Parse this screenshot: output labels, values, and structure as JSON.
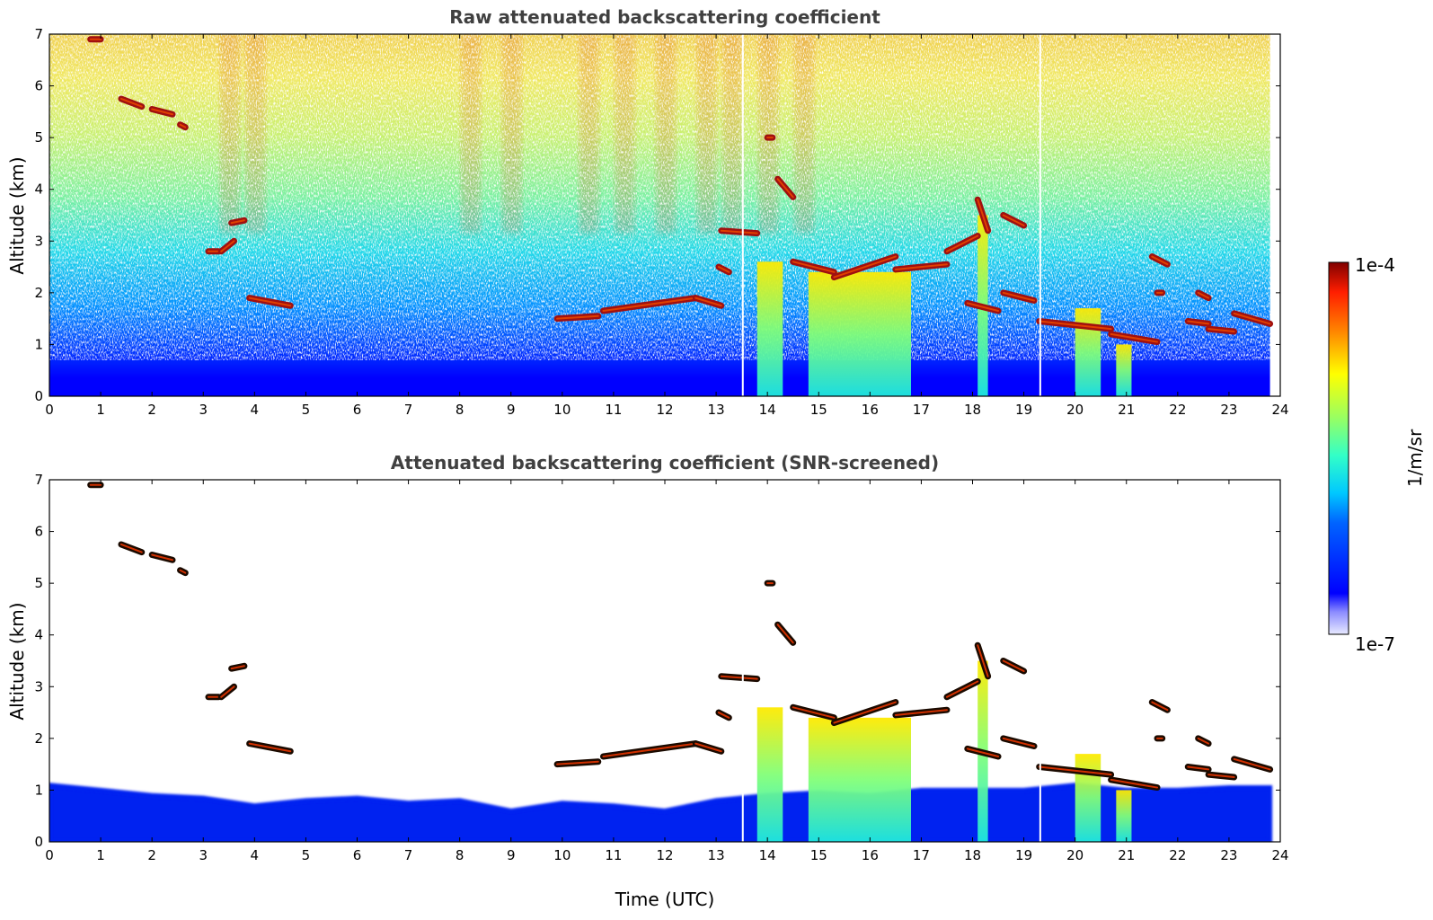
{
  "panels": [
    {
      "title": "Raw attenuated backscattering coefficient",
      "ylabel": "Altitude (km)",
      "xlabel": ""
    },
    {
      "title": "Attenuated backscattering coefficient (SNR-screened)",
      "ylabel": "Altitude (km)",
      "xlabel": "Time (UTC)"
    }
  ],
  "colorbar": {
    "label": "1/m/sr",
    "top_label": "1e-4",
    "bottom_label": "1e-7",
    "colormap": "jet",
    "scale": "log",
    "range": [
      1e-07,
      0.0001
    ]
  },
  "chart_data": [
    {
      "type": "heatmap",
      "title": "Raw attenuated backscattering coefficient",
      "xlabel": "",
      "ylabel": "Altitude (km)",
      "xlim": [
        0,
        24
      ],
      "ylim": [
        0,
        7
      ],
      "x_ticks": [
        "0",
        "1",
        "2",
        "3",
        "4",
        "5",
        "6",
        "7",
        "8",
        "9",
        "10",
        "11",
        "12",
        "13",
        "14",
        "15",
        "16",
        "17",
        "18",
        "19",
        "20",
        "21",
        "22",
        "23",
        "24"
      ],
      "y_ticks": [
        "0",
        "1",
        "2",
        "3",
        "4",
        "5",
        "6",
        "7"
      ],
      "data_end_time": 23.8,
      "cloud_layers": [
        {
          "t": [
            0.8,
            1.0
          ],
          "alt": [
            6.9,
            6.9
          ]
        },
        {
          "t": [
            1.4,
            1.8
          ],
          "alt": [
            5.75,
            5.6
          ]
        },
        {
          "t": [
            2.0,
            2.4
          ],
          "alt": [
            5.55,
            5.45
          ]
        },
        {
          "t": [
            2.55,
            2.65
          ],
          "alt": [
            5.25,
            5.2
          ]
        },
        {
          "t": [
            3.1,
            3.3
          ],
          "alt": [
            2.8,
            2.8
          ]
        },
        {
          "t": [
            3.35,
            3.6
          ],
          "alt": [
            2.8,
            3.0
          ]
        },
        {
          "t": [
            3.55,
            3.8
          ],
          "alt": [
            3.35,
            3.4
          ]
        },
        {
          "t": [
            3.9,
            4.7
          ],
          "alt": [
            1.9,
            1.75
          ]
        },
        {
          "t": [
            9.9,
            10.7
          ],
          "alt": [
            1.5,
            1.55
          ]
        },
        {
          "t": [
            10.8,
            12.6
          ],
          "alt": [
            1.65,
            1.9
          ]
        },
        {
          "t": [
            12.6,
            13.1
          ],
          "alt": [
            1.9,
            1.75
          ]
        },
        {
          "t": [
            13.05,
            13.25
          ],
          "alt": [
            2.5,
            2.4
          ]
        },
        {
          "t": [
            13.1,
            13.8
          ],
          "alt": [
            3.2,
            3.15
          ]
        },
        {
          "t": [
            14.0,
            14.1
          ],
          "alt": [
            5.0,
            5.0
          ]
        },
        {
          "t": [
            14.2,
            14.5
          ],
          "alt": [
            4.2,
            3.85
          ]
        },
        {
          "t": [
            14.5,
            15.3
          ],
          "alt": [
            2.6,
            2.4
          ]
        },
        {
          "t": [
            15.3,
            16.5
          ],
          "alt": [
            2.3,
            2.7
          ]
        },
        {
          "t": [
            16.5,
            17.5
          ],
          "alt": [
            2.45,
            2.55
          ]
        },
        {
          "t": [
            17.5,
            18.1
          ],
          "alt": [
            2.8,
            3.1
          ]
        },
        {
          "t": [
            18.1,
            18.3
          ],
          "alt": [
            3.8,
            3.2
          ]
        },
        {
          "t": [
            17.9,
            18.5
          ],
          "alt": [
            1.8,
            1.65
          ]
        },
        {
          "t": [
            18.6,
            19.2
          ],
          "alt": [
            2.0,
            1.85
          ]
        },
        {
          "t": [
            18.6,
            19.0
          ],
          "alt": [
            3.5,
            3.3
          ]
        },
        {
          "t": [
            19.3,
            20.7
          ],
          "alt": [
            1.45,
            1.3
          ]
        },
        {
          "t": [
            20.7,
            21.6
          ],
          "alt": [
            1.2,
            1.05
          ]
        },
        {
          "t": [
            21.5,
            21.8
          ],
          "alt": [
            2.7,
            2.55
          ]
        },
        {
          "t": [
            21.6,
            21.7
          ],
          "alt": [
            2.0,
            2.0
          ]
        },
        {
          "t": [
            22.2,
            22.6
          ],
          "alt": [
            1.45,
            1.4
          ]
        },
        {
          "t": [
            22.4,
            22.6
          ],
          "alt": [
            2.0,
            1.9
          ]
        },
        {
          "t": [
            22.6,
            23.1
          ],
          "alt": [
            1.3,
            1.25
          ]
        },
        {
          "t": [
            23.1,
            23.8
          ],
          "alt": [
            1.6,
            1.4
          ]
        }
      ],
      "precipitation_columns": [
        {
          "t": [
            13.8,
            14.3
          ],
          "top_alt": 2.6
        },
        {
          "t": [
            14.8,
            16.8
          ],
          "top_alt": 2.4
        },
        {
          "t": [
            18.1,
            18.3
          ],
          "top_alt": 3.5
        },
        {
          "t": [
            20.0,
            20.5
          ],
          "top_alt": 1.7
        },
        {
          "t": [
            20.8,
            21.1
          ],
          "top_alt": 1.0
        }
      ],
      "data_gaps": [
        13.52,
        19.32
      ]
    },
    {
      "type": "heatmap",
      "title": "Attenuated backscattering coefficient (SNR-screened)",
      "xlabel": "Time (UTC)",
      "ylabel": "Altitude (km)",
      "xlim": [
        0,
        24
      ],
      "ylim": [
        0,
        7
      ],
      "x_ticks": [
        "0",
        "1",
        "2",
        "3",
        "4",
        "5",
        "6",
        "7",
        "8",
        "9",
        "10",
        "11",
        "12",
        "13",
        "14",
        "15",
        "16",
        "17",
        "18",
        "19",
        "20",
        "21",
        "22",
        "23",
        "24"
      ],
      "y_ticks": [
        "0",
        "1",
        "2",
        "3",
        "4",
        "5",
        "6",
        "7"
      ],
      "data_end_time": 23.8,
      "boundary_layer_top": [
        {
          "t": 0,
          "alt": 1.1
        },
        {
          "t": 1,
          "alt": 1.0
        },
        {
          "t": 2,
          "alt": 0.9
        },
        {
          "t": 3,
          "alt": 0.85
        },
        {
          "t": 4,
          "alt": 0.7
        },
        {
          "t": 5,
          "alt": 0.8
        },
        {
          "t": 6,
          "alt": 0.85
        },
        {
          "t": 7,
          "alt": 0.75
        },
        {
          "t": 8,
          "alt": 0.8
        },
        {
          "t": 9,
          "alt": 0.6
        },
        {
          "t": 10,
          "alt": 0.75
        },
        {
          "t": 11,
          "alt": 0.7
        },
        {
          "t": 12,
          "alt": 0.6
        },
        {
          "t": 13,
          "alt": 0.8
        },
        {
          "t": 14,
          "alt": 0.9
        },
        {
          "t": 15,
          "alt": 0.95
        },
        {
          "t": 16,
          "alt": 0.9
        },
        {
          "t": 17,
          "alt": 1.0
        },
        {
          "t": 18,
          "alt": 1.0
        },
        {
          "t": 19,
          "alt": 1.0
        },
        {
          "t": 20,
          "alt": 1.1
        },
        {
          "t": 21,
          "alt": 1.0
        },
        {
          "t": 22,
          "alt": 1.0
        },
        {
          "t": 23,
          "alt": 1.05
        },
        {
          "t": 23.8,
          "alt": 1.05
        }
      ]
    }
  ]
}
